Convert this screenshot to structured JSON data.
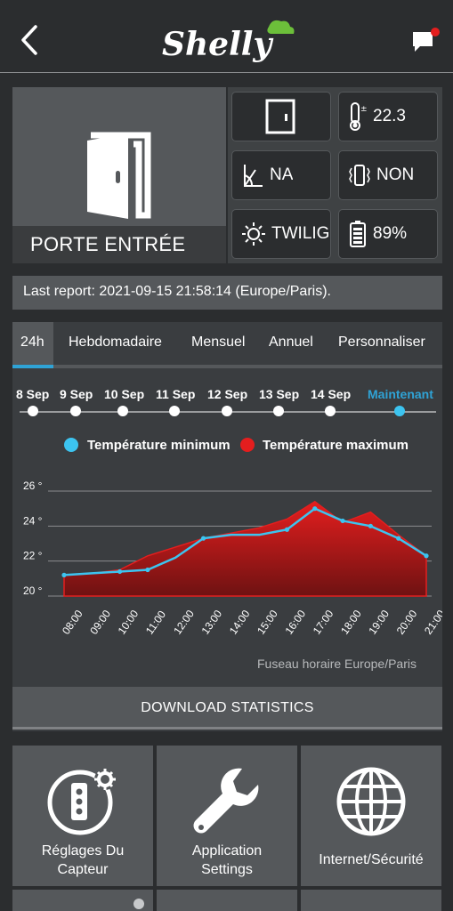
{
  "header": {
    "logo_text": "Shelly",
    "back_icon": "back-arrow-icon",
    "chat_icon": "chat-notification-icon"
  },
  "device": {
    "name": "PORTE ENTRÉE",
    "icon": "door-open-icon"
  },
  "status": {
    "temperature": "22.3",
    "tilt": "NA",
    "vibration": "NON",
    "illumination": "TWILIG...",
    "battery": "89%"
  },
  "report": {
    "text": "Last report: 2021-09-15 21:58:14 (Europe/Paris)."
  },
  "tabs": [
    "24h",
    "Hebdomadaire",
    "Mensuel",
    "Annuel",
    "Personnaliser"
  ],
  "timeline": [
    "8 Sep",
    "9 Sep",
    "10 Sep",
    "11 Sep",
    "12 Sep",
    "13 Sep",
    "14 Sep",
    "Maintenant"
  ],
  "legend": {
    "min": "Température minimum",
    "max": "Température maximum"
  },
  "colors": {
    "accent": "#2fa3d6",
    "min_series": "#3cc4f0",
    "max_series": "#e41e1e",
    "bg": "#2b2d2f"
  },
  "chart_data": {
    "type": "area",
    "x": [
      "08:00",
      "09:00",
      "10:00",
      "11:00",
      "12:00",
      "13:00",
      "14:00",
      "15:00",
      "16:00",
      "17:00",
      "18:00",
      "19:00",
      "20:00",
      "21:00"
    ],
    "y_ticks": [
      "20 °",
      "22 °",
      "24 °",
      "26 °"
    ],
    "ylim": [
      20,
      26
    ],
    "series": [
      {
        "name": "Température minimum",
        "values": [
          21.2,
          21.3,
          21.4,
          21.5,
          22.2,
          23.3,
          23.5,
          23.5,
          23.8,
          25.0,
          24.3,
          24.0,
          23.3,
          22.3
        ]
      },
      {
        "name": "Température maximum",
        "values": [
          21.2,
          21.3,
          21.5,
          22.3,
          22.8,
          23.3,
          23.6,
          23.9,
          24.4,
          25.4,
          24.2,
          24.8,
          23.5,
          22.3
        ]
      }
    ],
    "grid": true,
    "legend": "top"
  },
  "timezone_note": "Fuseau horaire Europe/Paris",
  "download_label": "DOWNLOAD STATISTICS",
  "tiles": [
    {
      "label1": "Réglages Du",
      "label2": "Capteur"
    },
    {
      "label1": "Application",
      "label2": "Settings"
    },
    {
      "label1": "Internet/Sécurité",
      "label2": ""
    }
  ]
}
